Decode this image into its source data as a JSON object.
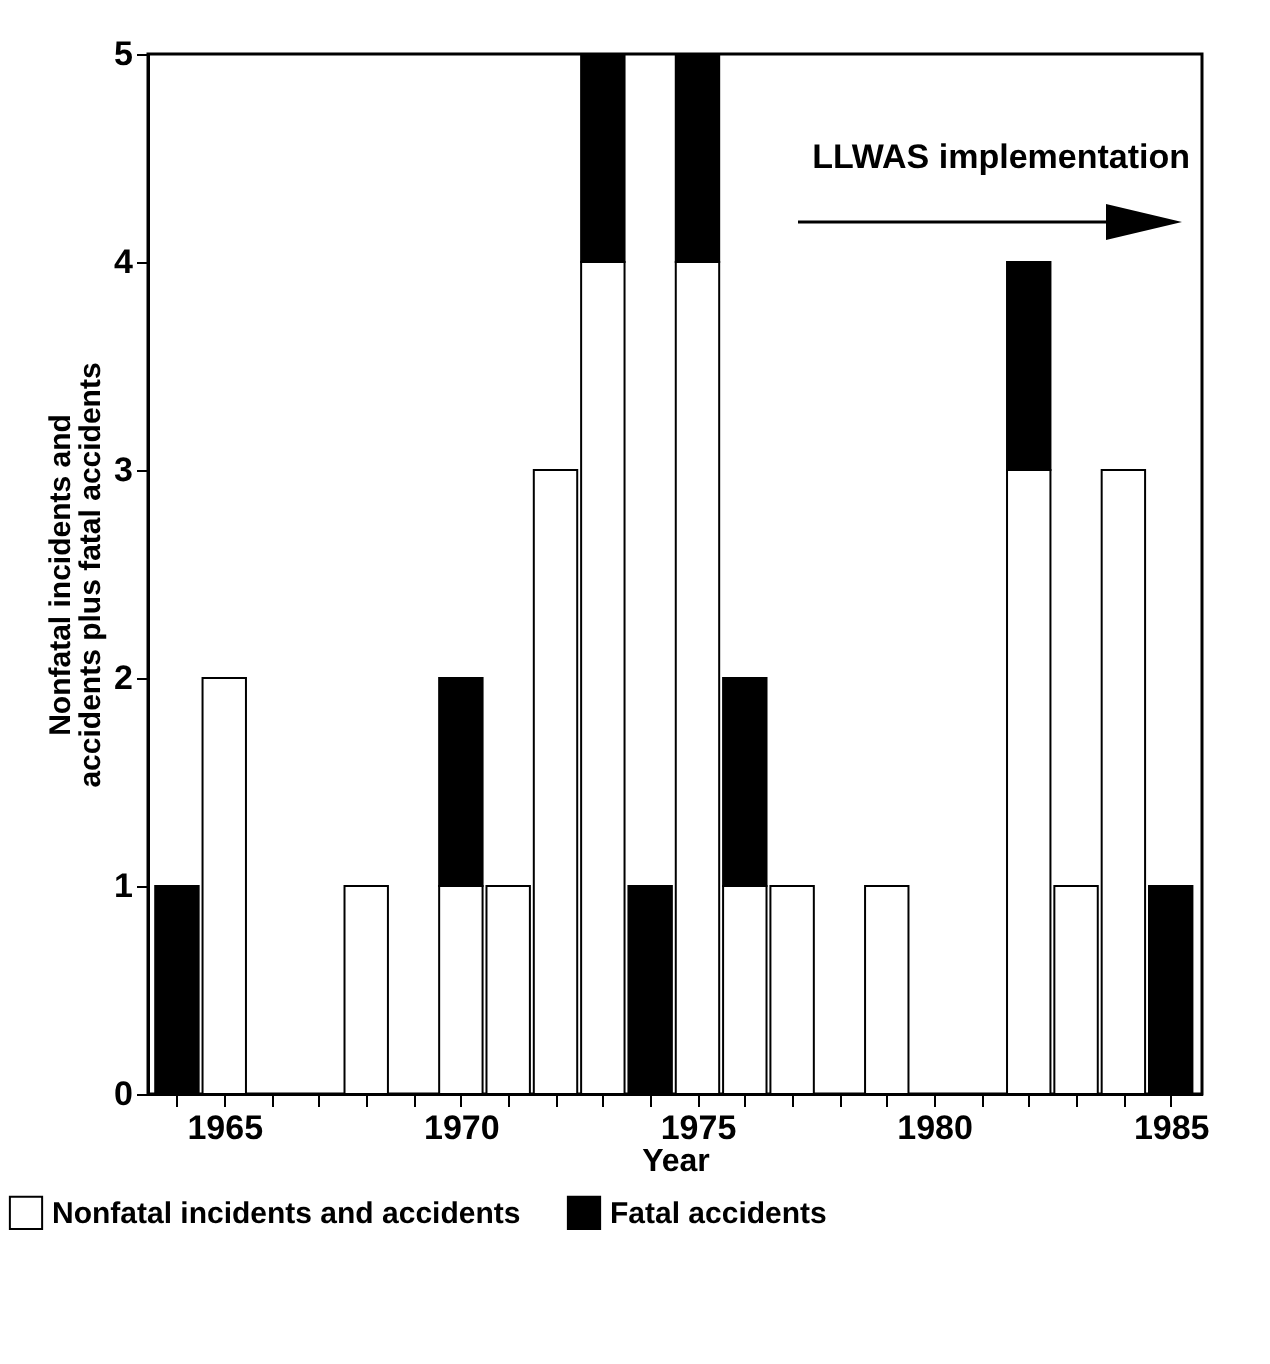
{
  "chart_data": {
    "type": "bar",
    "stacked": true,
    "xlabel": "Year",
    "ylabel": "Nonfatal incidents and accidents plus fatal accidents",
    "x": [
      1964,
      1965,
      1968,
      1970,
      1971,
      1972,
      1973,
      1974,
      1975,
      1976,
      1977,
      1979,
      1982,
      1983,
      1984,
      1985
    ],
    "series": [
      {
        "name": "Nonfatal incidents and accidents",
        "color": "#ffffff",
        "values": [
          null,
          2,
          1,
          1,
          1,
          3,
          4,
          null,
          4,
          1,
          1,
          1,
          3,
          1,
          3,
          null
        ]
      },
      {
        "name": "Fatal accidents",
        "color": "#000000",
        "values": [
          1,
          null,
          null,
          1,
          null,
          null,
          1,
          1,
          1,
          1,
          null,
          null,
          1,
          null,
          null,
          1
        ]
      }
    ],
    "xlim": [
      1963.6,
      1985.45
    ],
    "xticks": [
      {
        "value": 1964,
        "label": null
      },
      1965,
      {
        "value": 1966,
        "label": null
      },
      {
        "value": 1967,
        "label": null
      },
      {
        "value": 1968,
        "label": null
      },
      {
        "value": 1969,
        "label": null
      },
      1970,
      {
        "value": 1971,
        "label": null
      },
      {
        "value": 1972,
        "label": null
      },
      {
        "value": 1973,
        "label": null
      },
      {
        "value": 1974,
        "label": null
      },
      1975,
      {
        "value": 1976,
        "label": null
      },
      {
        "value": 1977,
        "label": null
      },
      {
        "value": 1978,
        "label": null
      },
      {
        "value": 1979,
        "label": null
      },
      1980,
      {
        "value": 1981,
        "label": null
      },
      {
        "value": 1982,
        "label": null
      },
      {
        "value": 1983,
        "label": null
      },
      {
        "value": 1984,
        "label": null
      },
      1985
    ],
    "ylim": [
      0,
      5
    ],
    "yticks": [
      0,
      1,
      2,
      3,
      4,
      5
    ],
    "annotations": [
      "LLWAS implementation"
    ],
    "grid": false,
    "legend": "bottom left"
  }
}
